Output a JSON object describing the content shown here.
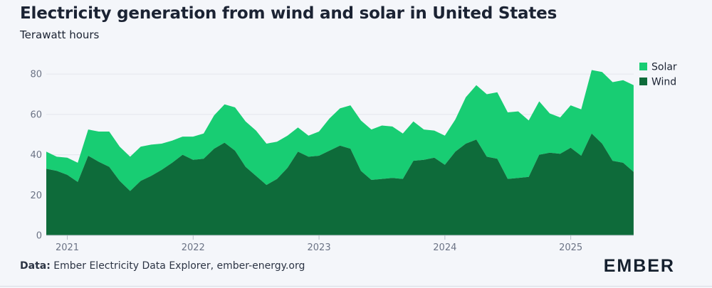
{
  "header": {
    "title": "Electricity generation from wind and solar in United States",
    "subtitle": "Terawatt hours"
  },
  "footer": {
    "source_label": "Data:",
    "source_text": "Ember Electricity Data Explorer, ember-energy.org",
    "brand": "EMBER"
  },
  "colors": {
    "solar": "#18cd73",
    "wind": "#0e6b3a",
    "grid": "#e3e6ec",
    "axis_text": "#6b7385"
  },
  "chart_data": {
    "type": "area",
    "stacked": true,
    "title": "Electricity generation from wind and solar in United States",
    "ylabel": "Terawatt hours",
    "xlabel": "",
    "ylim": [
      0,
      85
    ],
    "yticks": [
      0,
      20,
      40,
      60,
      80
    ],
    "x_start": 2020.833,
    "x_end": 2025.5,
    "x_step": 0.08333,
    "xticks": [
      {
        "label": "2021",
        "value": 2021
      },
      {
        "label": "2022",
        "value": 2022
      },
      {
        "label": "2023",
        "value": 2023
      },
      {
        "label": "2024",
        "value": 2024
      },
      {
        "label": "2025",
        "value": 2025
      }
    ],
    "legend": [
      "Solar",
      "Wind"
    ],
    "legend_position": "top-right",
    "series": [
      {
        "name": "Wind",
        "values": [
          33.0,
          32.0,
          30.0,
          26.5,
          39.5,
          36.5,
          34.0,
          27.0,
          22.0,
          27.0,
          29.5,
          32.5,
          36.0,
          40.0,
          37.5,
          38.0,
          43.0,
          46.0,
          42.0,
          34.0,
          29.5,
          25.0,
          28.0,
          33.5,
          41.5,
          39.0,
          39.5,
          42.0,
          44.5,
          43.0,
          32.0,
          27.5,
          28.0,
          28.5,
          28.0,
          37.0,
          37.5,
          38.5,
          35.0,
          41.5,
          45.5,
          47.5,
          39.0,
          38.0,
          28.0,
          28.5,
          29.0,
          40.0,
          41.0,
          40.5,
          43.5,
          39.5,
          50.5,
          45.5,
          37.0,
          36.0,
          31.5
        ]
      },
      {
        "name": "Solar",
        "values": [
          8.5,
          7.0,
          8.5,
          9.5,
          13.0,
          15.0,
          17.5,
          17.0,
          17.0,
          17.0,
          15.5,
          13.0,
          11.0,
          9.0,
          11.5,
          12.5,
          16.5,
          19.0,
          21.5,
          22.5,
          22.5,
          20.5,
          18.5,
          16.0,
          12.0,
          10.5,
          12.0,
          16.0,
          18.5,
          21.5,
          25.0,
          25.0,
          26.5,
          25.5,
          22.5,
          19.5,
          15.0,
          13.5,
          14.5,
          16.0,
          23.0,
          27.0,
          31.0,
          33.0,
          33.0,
          33.0,
          28.0,
          26.5,
          19.5,
          18.0,
          21.0,
          23.0,
          31.5,
          35.5,
          39.0,
          41.0,
          43.0
        ]
      }
    ]
  }
}
